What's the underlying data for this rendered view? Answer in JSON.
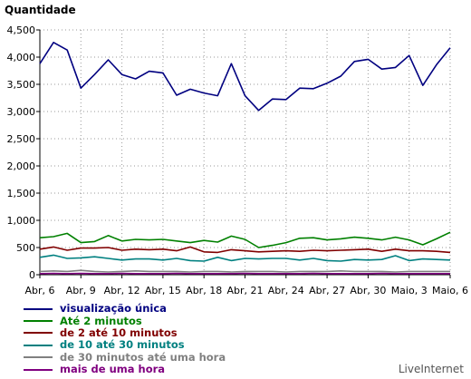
{
  "chart_data": {
    "type": "line",
    "title": "Quantidade",
    "ylim": [
      0,
      4500
    ],
    "yticks": [
      "0",
      "500",
      "1,000",
      "1,500",
      "2,000",
      "2,500",
      "3,000",
      "3,500",
      "4,000",
      "4,500"
    ],
    "ytick_values": [
      0,
      500,
      1000,
      1500,
      2000,
      2500,
      3000,
      3500,
      4000,
      4500
    ],
    "xticks": [
      "Abr, 6",
      "Abr, 9",
      "Abr, 12",
      "Abr, 15",
      "Abr, 18",
      "Abr, 21",
      "Abr, 24",
      "Abr, 27",
      "Abr, 30",
      "Maio, 3",
      "Maio, 6"
    ],
    "x": [
      "Abr, 6",
      "Abr, 7",
      "Abr, 8",
      "Abr, 9",
      "Abr, 10",
      "Abr, 11",
      "Abr, 12",
      "Abr, 13",
      "Abr, 14",
      "Abr, 15",
      "Abr, 16",
      "Abr, 17",
      "Abr, 18",
      "Abr, 19",
      "Abr, 20",
      "Abr, 21",
      "Abr, 22",
      "Abr, 23",
      "Abr, 24",
      "Abr, 25",
      "Abr, 26",
      "Abr, 27",
      "Abr, 28",
      "Abr, 29",
      "Abr, 30",
      "Maio, 1",
      "Maio, 2",
      "Maio, 3",
      "Maio, 4",
      "Maio, 5",
      "Maio, 6"
    ],
    "grid": true,
    "legend_position": "bottom",
    "series": [
      {
        "name": "visualização única",
        "color": "#000080",
        "values": [
          3880,
          4270,
          4130,
          3430,
          3680,
          3950,
          3680,
          3600,
          3740,
          3710,
          3300,
          3410,
          3340,
          3290,
          3880,
          3290,
          3020,
          3230,
          3220,
          3430,
          3420,
          3520,
          3650,
          3920,
          3960,
          3780,
          3810,
          4030,
          3480,
          3860,
          4170
        ]
      },
      {
        "name": "Até 2 minutos",
        "color": "#008000",
        "values": [
          680,
          700,
          760,
          590,
          610,
          720,
          620,
          650,
          640,
          650,
          620,
          590,
          630,
          600,
          710,
          650,
          500,
          540,
          590,
          670,
          680,
          640,
          660,
          690,
          670,
          640,
          690,
          640,
          550,
          660,
          780
        ]
      },
      {
        "name": "de 2 até 10 minutos",
        "color": "#800000",
        "values": [
          470,
          510,
          450,
          490,
          490,
          500,
          450,
          470,
          460,
          470,
          440,
          510,
          420,
          410,
          460,
          440,
          420,
          430,
          440,
          430,
          450,
          440,
          450,
          460,
          470,
          430,
          470,
          440,
          440,
          430,
          410
        ]
      },
      {
        "name": "de 10 até 30 minutos",
        "color": "#008080",
        "values": [
          320,
          360,
          300,
          310,
          330,
          300,
          270,
          290,
          290,
          270,
          300,
          260,
          250,
          320,
          260,
          300,
          290,
          300,
          300,
          270,
          300,
          260,
          250,
          280,
          270,
          280,
          350,
          260,
          290,
          280,
          270
        ]
      },
      {
        "name": "de 30 minutos até uma hora",
        "color": "#808080",
        "values": [
          60,
          70,
          60,
          80,
          60,
          50,
          60,
          70,
          60,
          60,
          60,
          50,
          60,
          60,
          50,
          60,
          60,
          60,
          50,
          60,
          60,
          60,
          70,
          60,
          60,
          60,
          50,
          60,
          60,
          60,
          60
        ]
      },
      {
        "name": "mais de uma hora",
        "color": "#800080",
        "values": [
          20,
          25,
          20,
          25,
          20,
          20,
          25,
          20,
          20,
          20,
          25,
          20,
          20,
          20,
          20,
          25,
          20,
          20,
          20,
          20,
          25,
          20,
          20,
          20,
          20,
          25,
          20,
          20,
          20,
          20,
          20
        ]
      }
    ]
  },
  "brand": "LiveInternet"
}
